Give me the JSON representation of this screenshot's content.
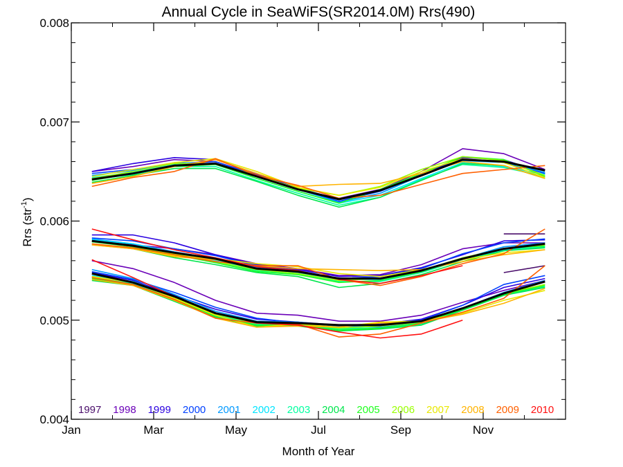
{
  "chart_data": {
    "type": "line",
    "title": "Annual Cycle in SeaWiFS(SR2014.0M) Rrs(490)",
    "xlabel": "Month of Year",
    "ylabel": "Rrs (str",
    "ylabel_exponent": "-1",
    "ylabel_suffix": ")",
    "xlim": [
      1,
      12
    ],
    "ylim": [
      0.004,
      0.008
    ],
    "x_ticks": [
      {
        "value": 1,
        "label": "Jan"
      },
      {
        "value": 3,
        "label": "Mar"
      },
      {
        "value": 5,
        "label": "May"
      },
      {
        "value": 7,
        "label": "Jul"
      },
      {
        "value": 9,
        "label": "Sep"
      },
      {
        "value": 11,
        "label": "Nov"
      }
    ],
    "y_ticks": [
      {
        "value": 0.004,
        "label": "0.004"
      },
      {
        "value": 0.005,
        "label": "0.005"
      },
      {
        "value": 0.006,
        "label": "0.006"
      },
      {
        "value": 0.007,
        "label": "0.007"
      },
      {
        "value": 0.008,
        "label": "0.008"
      }
    ],
    "legend_position": "bottom",
    "x": [
      1.5,
      2.5,
      3.5,
      4.5,
      5.5,
      6.5,
      7.5,
      8.5,
      9.5,
      10.5,
      11.5,
      12.5
    ],
    "climatology_color": "#000000",
    "climatology": {
      "upper": [
        0.00642,
        0.00648,
        0.00656,
        0.00658,
        0.00645,
        0.00632,
        0.00622,
        0.00631,
        0.00646,
        0.00662,
        0.0066,
        0.00651
      ],
      "middle": [
        0.0058,
        0.00575,
        0.00568,
        0.00562,
        0.00552,
        0.00549,
        0.00542,
        0.00542,
        0.0055,
        0.00562,
        0.00572,
        0.00577
      ],
      "lower": [
        0.00547,
        0.00538,
        0.00524,
        0.00507,
        0.00498,
        0.00497,
        0.00495,
        0.00495,
        0.00499,
        0.00512,
        0.00527,
        0.00539
      ]
    },
    "series": [
      {
        "name": "1997",
        "color": "#4a0e6b",
        "upper": [
          null,
          null,
          null,
          null,
          null,
          null,
          null,
          null,
          null,
          null,
          null,
          null
        ],
        "middle": [
          null,
          null,
          null,
          null,
          null,
          null,
          null,
          null,
          null,
          null,
          0.00587,
          0.00587
        ],
        "lower": [
          null,
          null,
          null,
          null,
          null,
          null,
          null,
          null,
          null,
          null,
          0.00548,
          0.00555
        ]
      },
      {
        "name": "1998",
        "color": "#6a00b8",
        "upper": [
          0.0065,
          0.00655,
          0.00662,
          0.0066,
          0.00647,
          0.00632,
          0.00623,
          0.00632,
          0.0065,
          0.00673,
          0.00668,
          0.00652
        ],
        "middle": [
          0.0058,
          0.00576,
          0.00572,
          0.00566,
          0.00557,
          0.00552,
          0.00545,
          0.00546,
          0.00556,
          0.00572,
          0.00578,
          0.00578
        ],
        "lower": [
          0.0056,
          0.00552,
          0.00538,
          0.0052,
          0.00507,
          0.00505,
          0.00499,
          0.00499,
          0.00505,
          0.00518,
          0.0053,
          0.0054
        ]
      },
      {
        "name": "1999",
        "color": "#2a00e0",
        "upper": [
          0.0065,
          0.00658,
          0.00664,
          0.00662,
          0.00648,
          0.00633,
          0.00622,
          0.0063,
          0.00647,
          0.00664,
          0.00662,
          0.00648
        ],
        "middle": [
          0.00586,
          0.00586,
          0.00578,
          0.00566,
          0.00556,
          0.00551,
          0.00544,
          0.00545,
          0.00553,
          0.00566,
          0.0058,
          0.00581
        ],
        "lower": [
          0.00548,
          0.0054,
          0.00525,
          0.00511,
          0.00501,
          0.00498,
          0.00495,
          0.00496,
          0.00501,
          0.00515,
          0.00533,
          0.00542
        ]
      },
      {
        "name": "2000",
        "color": "#0040ff",
        "upper": [
          0.00648,
          0.00652,
          0.00658,
          0.0066,
          0.00646,
          0.00632,
          0.0062,
          0.0063,
          0.00646,
          0.00662,
          0.00659,
          0.00648
        ],
        "middle": [
          0.00583,
          0.0058,
          0.00572,
          0.00565,
          0.00555,
          0.0055,
          0.00542,
          0.00544,
          0.00552,
          0.00567,
          0.00578,
          0.00582
        ],
        "lower": [
          0.00549,
          0.00541,
          0.00528,
          0.00513,
          0.00502,
          0.00497,
          0.00494,
          0.00496,
          0.005,
          0.00515,
          0.00536,
          0.00545
        ]
      },
      {
        "name": "2001",
        "color": "#0099ff",
        "upper": [
          0.00646,
          0.00651,
          0.00659,
          0.00658,
          0.00645,
          0.00632,
          0.00619,
          0.00628,
          0.00646,
          0.00661,
          0.00659,
          0.00649
        ],
        "middle": [
          0.00582,
          0.00577,
          0.00569,
          0.00562,
          0.00553,
          0.00549,
          0.00542,
          0.00541,
          0.00549,
          0.00562,
          0.00574,
          0.00578
        ],
        "lower": [
          0.00551,
          0.00542,
          0.00526,
          0.00509,
          0.00499,
          0.00498,
          0.00494,
          0.00493,
          0.00497,
          0.00512,
          0.00528,
          0.0054
        ]
      },
      {
        "name": "2002",
        "color": "#00e5ff",
        "upper": [
          0.00644,
          0.00649,
          0.00657,
          0.00657,
          0.00643,
          0.0063,
          0.00618,
          0.00626,
          0.00643,
          0.00659,
          0.00655,
          0.00647
        ],
        "middle": [
          0.00581,
          0.00577,
          0.00568,
          0.0056,
          0.00552,
          0.00548,
          0.00541,
          0.00541,
          0.00549,
          0.00561,
          0.00571,
          0.00575
        ],
        "lower": [
          0.00545,
          0.00539,
          0.00524,
          0.00507,
          0.00498,
          0.00496,
          0.00492,
          0.00492,
          0.00497,
          0.00511,
          0.00526,
          0.00536
        ]
      },
      {
        "name": "2003",
        "color": "#00ffa0",
        "upper": [
          0.00642,
          0.00647,
          0.00655,
          0.00655,
          0.00641,
          0.00628,
          0.00616,
          0.00624,
          0.00642,
          0.00657,
          0.00654,
          0.00645
        ],
        "middle": [
          0.0058,
          0.00575,
          0.00567,
          0.00559,
          0.0055,
          0.00546,
          0.00539,
          0.00539,
          0.00548,
          0.00561,
          0.0057,
          0.00574
        ],
        "lower": [
          0.00543,
          0.00537,
          0.00522,
          0.00505,
          0.00496,
          0.00495,
          0.00491,
          0.00492,
          0.00496,
          0.0051,
          0.00525,
          0.00534
        ]
      },
      {
        "name": "2004",
        "color": "#00e64d",
        "upper": [
          0.00639,
          0.00646,
          0.00653,
          0.00653,
          0.0064,
          0.00626,
          0.00614,
          0.00624,
          0.00641,
          0.00658,
          0.00656,
          0.00643
        ],
        "middle": [
          0.00577,
          0.00572,
          0.00563,
          0.00556,
          0.00548,
          0.00544,
          0.00533,
          0.00537,
          0.00546,
          0.00559,
          0.0057,
          0.00573
        ],
        "lower": [
          0.0054,
          0.00535,
          0.00519,
          0.00503,
          0.00494,
          0.00494,
          0.00489,
          0.00491,
          0.00495,
          0.0051,
          0.00525,
          0.00533
        ]
      },
      {
        "name": "2005",
        "color": "#20ff20",
        "upper": [
          0.00641,
          0.00648,
          0.00655,
          0.00657,
          0.00643,
          0.0063,
          0.00618,
          0.00632,
          0.00648,
          0.00665,
          0.00662,
          0.00645
        ],
        "middle": [
          0.00579,
          0.00574,
          0.00566,
          0.00558,
          0.00549,
          0.00546,
          0.00538,
          0.0054,
          0.00549,
          0.00562,
          0.00572,
          0.00575
        ],
        "lower": [
          0.00542,
          0.00536,
          0.00521,
          0.00504,
          0.00495,
          0.00495,
          0.0049,
          0.00492,
          0.00497,
          0.00511,
          0.00526,
          0.00535
        ]
      },
      {
        "name": "2006",
        "color": "#99ff00",
        "upper": [
          0.00643,
          0.0065,
          0.00658,
          0.00658,
          0.00646,
          0.00633,
          0.00626,
          0.00635,
          0.00652,
          0.00665,
          0.00661,
          0.00646
        ],
        "middle": [
          0.0058,
          0.00575,
          0.00567,
          0.00559,
          0.00551,
          0.00547,
          0.0054,
          0.00542,
          0.0055,
          0.00563,
          0.00572,
          0.00576
        ],
        "lower": [
          0.00544,
          0.00538,
          0.00523,
          0.00506,
          0.00497,
          0.00496,
          0.00492,
          0.00494,
          0.00498,
          0.00512,
          0.00527,
          0.00536
        ]
      },
      {
        "name": "2007",
        "color": "#e8e800",
        "upper": [
          0.00645,
          0.00652,
          0.00659,
          0.00663,
          0.0065,
          0.00634,
          0.00626,
          0.00634,
          0.0065,
          0.00663,
          0.00659,
          0.00644
        ],
        "middle": [
          0.00576,
          0.00572,
          0.00565,
          0.00562,
          0.00557,
          0.00554,
          0.00547,
          0.00544,
          0.00551,
          0.00561,
          0.00568,
          0.00571
        ],
        "lower": [
          0.00544,
          0.00538,
          0.00522,
          0.00505,
          0.00493,
          0.00496,
          0.00493,
          0.00498,
          0.00499,
          0.00507,
          0.0052,
          0.0053
        ]
      },
      {
        "name": "2008",
        "color": "#ffb300",
        "upper": [
          0.00638,
          0.00645,
          0.00655,
          0.00662,
          0.00648,
          0.00635,
          0.00637,
          0.00638,
          0.00648,
          0.0066,
          0.00656,
          0.00643
        ],
        "middle": [
          0.00576,
          0.00572,
          0.00564,
          0.00561,
          0.00555,
          0.00552,
          0.00551,
          0.0055,
          0.00551,
          0.00559,
          0.00566,
          0.00571
        ],
        "lower": [
          0.00541,
          0.00535,
          0.0052,
          0.00502,
          0.00493,
          0.00494,
          0.00493,
          0.00497,
          0.00498,
          0.00506,
          0.00517,
          0.00532
        ]
      },
      {
        "name": "2009",
        "color": "#ff6000",
        "upper": [
          0.00635,
          0.00644,
          0.0065,
          0.00663,
          0.00646,
          0.00636,
          0.00623,
          0.00626,
          0.00637,
          0.00648,
          0.00652,
          0.00656
        ],
        "middle": [
          0.00577,
          0.00573,
          0.00566,
          0.00559,
          0.00555,
          0.00555,
          0.00541,
          0.00535,
          0.00544,
          0.00557,
          0.00567,
          0.00592
        ],
        "lower": [
          0.00543,
          0.00536,
          0.00521,
          0.00502,
          0.00497,
          0.00496,
          0.00483,
          0.00486,
          0.00497,
          0.00508,
          0.00522,
          0.00555
        ]
      },
      {
        "name": "2010",
        "color": "#ff1010",
        "upper": [
          null,
          null,
          null,
          null,
          null,
          null,
          null,
          null,
          null,
          null,
          null,
          null
        ],
        "middle": [
          0.00592,
          0.00581,
          0.00571,
          0.00563,
          0.00554,
          0.0055,
          0.00541,
          0.00537,
          0.00545,
          0.00555,
          null,
          null
        ],
        "lower": [
          0.00561,
          0.00543,
          0.00524,
          0.00507,
          0.00497,
          0.00495,
          0.00488,
          0.00482,
          0.00486,
          0.005,
          null,
          null
        ]
      }
    ]
  }
}
